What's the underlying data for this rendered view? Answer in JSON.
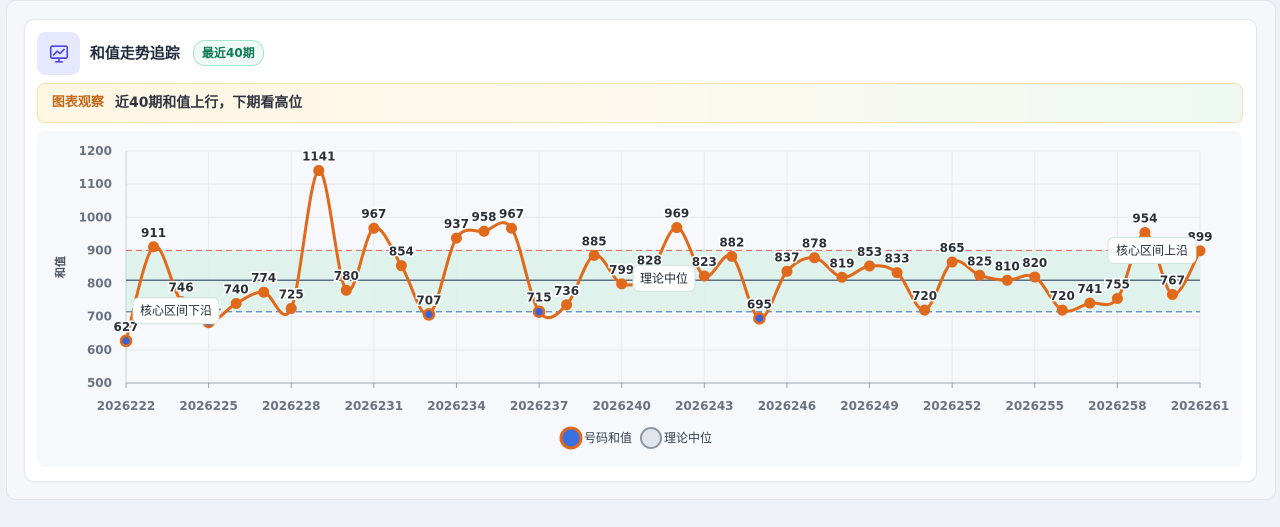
{
  "header": {
    "icon": "presentation-chart-icon",
    "title": "和值走势追踪",
    "badge": "最近40期"
  },
  "insight": {
    "label": "图表观察",
    "text": "近40期和值上行，下期看高位"
  },
  "colors": {
    "line": "#e0691b",
    "marker_face": "#e0691b",
    "marker_low": "#3b63d6",
    "band": "#dff3ec",
    "upper_line": "#e2706b",
    "lower_line": "#5b84c4",
    "median_line": "#5c6f82",
    "legend_series_fill": "#3b6fe0",
    "legend_median_fill": "#e2e6ec"
  },
  "chart_data": {
    "type": "line",
    "title": "",
    "xlabel": "",
    "ylabel": "和值",
    "ylim": [
      500,
      1200
    ],
    "yticks": [
      500,
      600,
      700,
      800,
      900,
      1000,
      1100,
      1200
    ],
    "x": [
      2026222,
      2026223,
      2026224,
      2026225,
      2026226,
      2026227,
      2026228,
      2026229,
      2026230,
      2026231,
      2026232,
      2026233,
      2026234,
      2026235,
      2026236,
      2026237,
      2026238,
      2026239,
      2026240,
      2026241,
      2026242,
      2026243,
      2026244,
      2026245,
      2026246,
      2026247,
      2026248,
      2026249,
      2026250,
      2026251,
      2026252,
      2026253,
      2026254,
      2026255,
      2026256,
      2026257,
      2026258,
      2026259,
      2026260,
      2026261
    ],
    "xticks": [
      "2026222",
      "2026225",
      "2026228",
      "2026231",
      "2026234",
      "2026237",
      "2026240",
      "2026243",
      "2026246",
      "2026249",
      "2026252",
      "2026255",
      "2026258",
      "2026261"
    ],
    "series": [
      {
        "name": "号码和值",
        "values": [
          627,
          911,
          746,
          684,
          740,
          774,
          725,
          1141,
          780,
          967,
          854,
          707,
          937,
          958,
          967,
          715,
          736,
          885,
          799,
          828,
          969,
          823,
          882,
          695,
          837,
          878,
          819,
          853,
          833,
          720,
          865,
          825,
          810,
          820,
          720,
          741,
          755,
          954,
          767,
          899
        ]
      }
    ],
    "reference_lines": [
      {
        "name": "理论中位",
        "value": 810
      },
      {
        "name": "核心区间上沿",
        "value": 900
      },
      {
        "name": "核心区间下沿",
        "value": 715
      }
    ],
    "legend": [
      {
        "label": "号码和值"
      },
      {
        "label": "理论中位"
      }
    ],
    "legend_position": "bottom",
    "grid": true
  }
}
